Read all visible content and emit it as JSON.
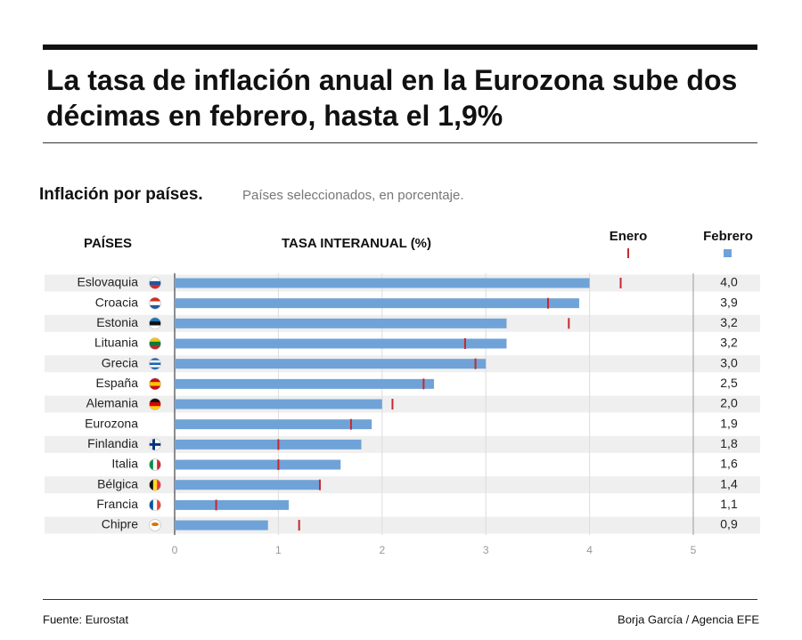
{
  "chart_data": {
    "type": "bar",
    "orientation": "horizontal",
    "title": "La tasa de inflación anual en la Eurozona sube dos décimas en febrero, hasta el 1,9%",
    "subtitle": "Inflación por países.",
    "description": "Países seleccionados, en porcentaje.",
    "column_headers": [
      "PAÍSES",
      "TASA INTERANUAL (%)"
    ],
    "categories": [
      "Eslovaquia",
      "Croacia",
      "Estonia",
      "Lituania",
      "Grecia",
      "España",
      "Alemania",
      "Eurozona",
      "Finlandia",
      "Italia",
      "Bélgica",
      "Francia",
      "Chipre"
    ],
    "series": [
      {
        "name": "Febrero",
        "color": "#6fa3d8",
        "values": [
          4.0,
          3.9,
          3.2,
          3.2,
          3.0,
          2.5,
          2.0,
          1.9,
          1.8,
          1.6,
          1.4,
          1.1,
          0.9
        ],
        "value_labels": [
          "4,0",
          "3,9",
          "3,2",
          "3,2",
          "3,0",
          "2,5",
          "2,0",
          "1,9",
          "1,8",
          "1,6",
          "1,4",
          "1,1",
          "0,9"
        ]
      },
      {
        "name": "Enero",
        "color": "#c8282d",
        "values": [
          4.3,
          3.6,
          3.8,
          2.8,
          2.9,
          2.4,
          2.1,
          1.7,
          1.0,
          1.0,
          1.4,
          0.4,
          1.2
        ]
      }
    ],
    "xlim": [
      0,
      5
    ],
    "xticks": [
      0,
      1,
      2,
      3,
      4,
      5
    ],
    "grid": true,
    "source": "Fuente: Eurostat",
    "credit": "Borja García / Agencia EFE"
  }
}
